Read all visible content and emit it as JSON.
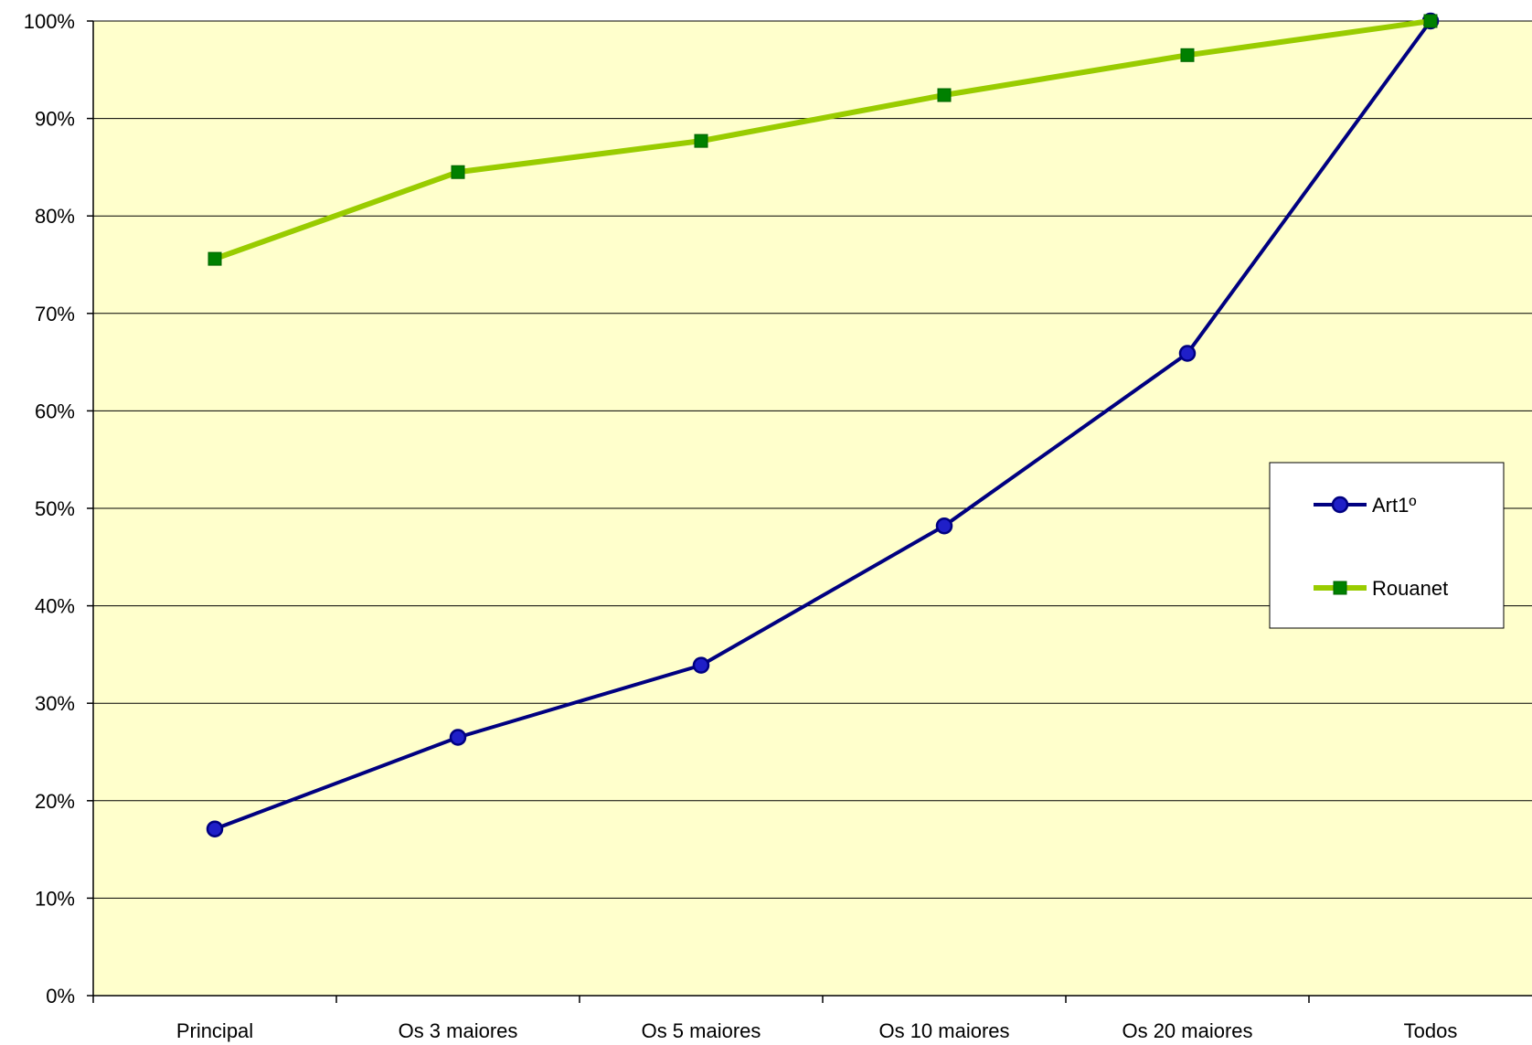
{
  "chart_data": {
    "type": "line",
    "categories": [
      "Principal",
      "Os 3 maiores",
      "Os 5 maiores",
      "Os 10 maiores",
      "Os 20 maiores",
      "Todos"
    ],
    "series": [
      {
        "name": "Art1º",
        "values": [
          17.1,
          26.5,
          33.9,
          48.2,
          65.9,
          100
        ],
        "color": "#000080",
        "marker": "circle",
        "marker_fill": "#1f1fc8"
      },
      {
        "name": "Rouanet",
        "values": [
          75.6,
          84.5,
          87.7,
          92.4,
          96.5,
          100
        ],
        "color": "#99cc00",
        "marker": "square",
        "marker_fill": "#008000"
      }
    ],
    "y_ticks": [
      "0%",
      "10%",
      "20%",
      "30%",
      "40%",
      "50%",
      "60%",
      "70%",
      "80%",
      "90%",
      "100%"
    ],
    "ylim": [
      0,
      100
    ],
    "grid": true,
    "legend": "right",
    "plot_background": "#ffffcc"
  }
}
